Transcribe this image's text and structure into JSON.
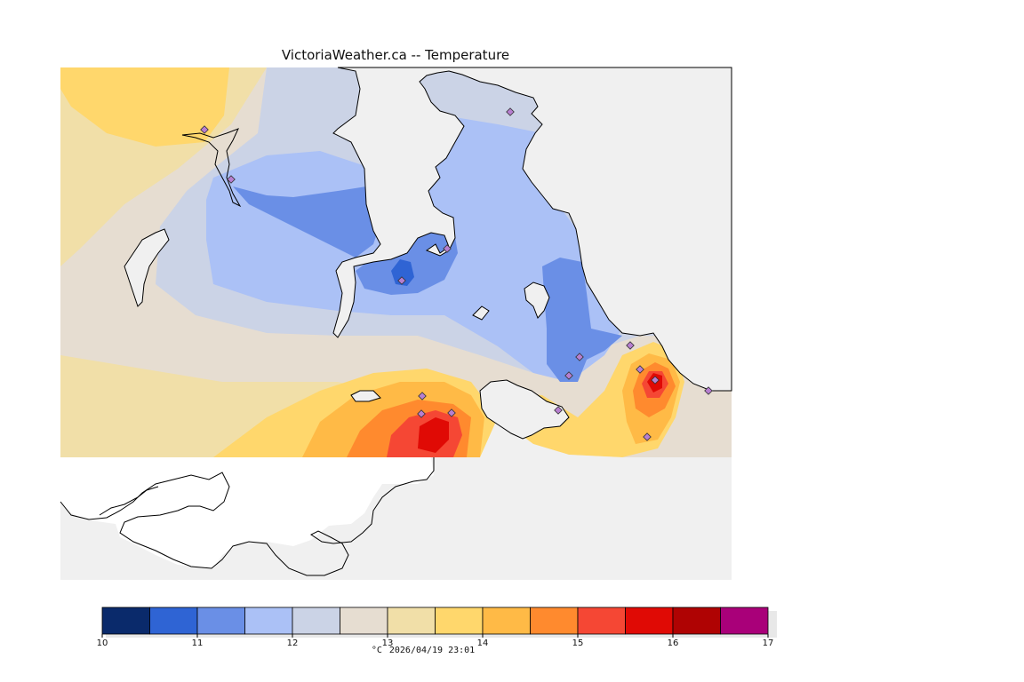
{
  "title": "VictoriaWeather.ca -- Temperature",
  "legend": {
    "unit": "°C",
    "timestamp": "2026/04/19 23:01",
    "ticks": [
      "10",
      "11",
      "12",
      "13",
      "14",
      "15",
      "16",
      "17"
    ],
    "tick_values": [
      10,
      11,
      12,
      13,
      14,
      15,
      16,
      17
    ],
    "min": 10,
    "max": 17,
    "bins": [
      {
        "from": 10.0,
        "to": 10.5,
        "color": "#0a2a6b"
      },
      {
        "from": 10.5,
        "to": 11.0,
        "color": "#2f64d4"
      },
      {
        "from": 11.0,
        "to": 11.5,
        "color": "#6a8fe6"
      },
      {
        "from": 11.5,
        "to": 12.0,
        "color": "#abc1f6"
      },
      {
        "from": 12.0,
        "to": 12.5,
        "color": "#cbd3e6"
      },
      {
        "from": 12.5,
        "to": 13.0,
        "color": "#e6ddd1"
      },
      {
        "from": 13.0,
        "to": 13.5,
        "color": "#f1dfa8"
      },
      {
        "from": 13.5,
        "to": 14.0,
        "color": "#ffd76c"
      },
      {
        "from": 14.0,
        "to": 14.5,
        "color": "#ffba46"
      },
      {
        "from": 14.5,
        "to": 15.0,
        "color": "#ff8a2e"
      },
      {
        "from": 15.0,
        "to": 15.5,
        "color": "#f54734"
      },
      {
        "from": 15.5,
        "to": 16.0,
        "color": "#e00a05"
      },
      {
        "from": 16.0,
        "to": 16.5,
        "color": "#af0303"
      },
      {
        "from": 16.5,
        "to": 17.0,
        "color": "#a90079"
      }
    ]
  },
  "colors": {
    "background_land": "#f0f0f0",
    "coastline": "#000000",
    "station_marker": "#b77fd0"
  },
  "stations_count": 16
}
